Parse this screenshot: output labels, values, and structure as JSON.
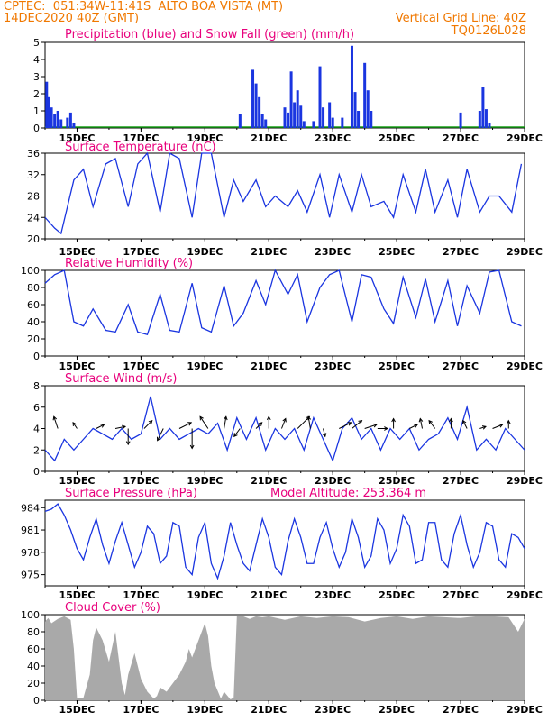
{
  "header": {
    "line1": "CPTEC:  051:34W-11:41S  ALTO BOA VISTA (MT)",
    "line2": "14DEC2020 40Z (GMT)",
    "grid_note": "Vertical Grid Line: 40Z",
    "code": "TQ0126L028"
  },
  "colors": {
    "title": "#e8007c",
    "header": "#f07800",
    "line": "#1a35e0",
    "precip": "#1a35e0",
    "snow": "#18a018",
    "cloud": "#a9a9a9",
    "wind_arrow": "#000000"
  },
  "x_ticks": [
    "15DEC",
    "17DEC",
    "19DEC",
    "21DEC",
    "23DEC",
    "25DEC",
    "27DEC",
    "29DEC"
  ],
  "chart_data": [
    {
      "id": "precip",
      "type": "bar",
      "title": "Precipitation (blue) and Snow Fall (green) (mm/h)",
      "ylim": [
        0,
        5
      ],
      "yticks": [
        0,
        1,
        2,
        3,
        4,
        5
      ],
      "xlim": [
        14.0,
        29.0
      ],
      "series": [
        {
          "name": "Precipitation",
          "x": [
            14.05,
            14.1,
            14.2,
            14.3,
            14.4,
            14.5,
            14.7,
            14.8,
            14.9,
            20.1,
            20.5,
            20.6,
            20.7,
            20.8,
            20.9,
            21.5,
            21.6,
            21.7,
            21.8,
            21.9,
            22.0,
            22.1,
            22.4,
            22.6,
            22.7,
            22.9,
            23.0,
            23.3,
            23.6,
            23.7,
            23.8,
            24.0,
            24.1,
            24.2,
            27.0,
            27.6,
            27.7,
            27.8,
            27.9
          ],
          "values": [
            2.7,
            1.8,
            1.2,
            0.8,
            1.0,
            0.5,
            0.6,
            0.9,
            0.3,
            0.8,
            3.4,
            2.6,
            1.8,
            0.8,
            0.5,
            1.2,
            0.9,
            3.3,
            1.5,
            2.2,
            1.3,
            0.4,
            0.4,
            3.6,
            1.2,
            1.5,
            0.6,
            0.6,
            4.8,
            2.1,
            1.0,
            3.8,
            2.2,
            1.0,
            0.9,
            1.0,
            2.4,
            1.1,
            0.3
          ]
        },
        {
          "name": "Snow Fall",
          "x": [],
          "values": []
        }
      ]
    },
    {
      "id": "temp",
      "type": "line",
      "title": "Surface Temperature (nC)",
      "ylim": [
        20,
        36
      ],
      "yticks": [
        20,
        24,
        28,
        32,
        36
      ],
      "xlim": [
        14.0,
        29.0
      ],
      "x": [
        14.0,
        14.3,
        14.5,
        14.9,
        15.2,
        15.5,
        15.9,
        16.2,
        16.6,
        16.9,
        17.2,
        17.6,
        17.9,
        18.2,
        18.6,
        18.9,
        19.2,
        19.6,
        19.9,
        20.2,
        20.6,
        20.9,
        21.2,
        21.6,
        21.9,
        22.2,
        22.6,
        22.9,
        23.2,
        23.6,
        23.9,
        24.2,
        24.6,
        24.9,
        25.2,
        25.6,
        25.9,
        26.2,
        26.6,
        26.9,
        27.2,
        27.6,
        27.9,
        28.2,
        28.6,
        28.9
      ],
      "y": [
        24,
        22,
        21,
        31,
        33,
        26,
        34,
        35,
        26,
        34,
        36,
        25,
        36,
        35,
        24,
        36,
        36,
        24,
        31,
        27,
        31,
        26,
        28,
        26,
        29,
        25,
        32,
        24,
        32,
        25,
        32,
        26,
        27,
        24,
        32,
        25,
        33,
        25,
        31,
        24,
        33,
        25,
        28,
        28,
        25,
        34
      ]
    },
    {
      "id": "rh",
      "type": "line",
      "title": "Relative Humidity (%)",
      "ylim": [
        0,
        100
      ],
      "yticks": [
        0,
        20,
        40,
        60,
        80,
        100
      ],
      "xlim": [
        14.0,
        29.0
      ],
      "x": [
        14.0,
        14.3,
        14.6,
        14.9,
        15.2,
        15.5,
        15.9,
        16.2,
        16.6,
        16.9,
        17.2,
        17.6,
        17.9,
        18.2,
        18.6,
        18.9,
        19.2,
        19.6,
        19.9,
        20.2,
        20.6,
        20.9,
        21.2,
        21.6,
        21.9,
        22.2,
        22.6,
        22.9,
        23.2,
        23.6,
        23.9,
        24.2,
        24.6,
        24.9,
        25.2,
        25.6,
        25.9,
        26.2,
        26.6,
        26.9,
        27.2,
        27.6,
        27.9,
        28.2,
        28.6,
        28.9
      ],
      "y": [
        85,
        95,
        100,
        40,
        35,
        55,
        30,
        28,
        60,
        28,
        25,
        72,
        30,
        28,
        85,
        33,
        28,
        82,
        35,
        50,
        88,
        60,
        100,
        72,
        95,
        40,
        80,
        95,
        100,
        40,
        95,
        92,
        55,
        38,
        92,
        45,
        90,
        40,
        88,
        35,
        82,
        50,
        98,
        100,
        40,
        35
      ]
    },
    {
      "id": "wind",
      "type": "line",
      "title": "Surface Wind (m/s)",
      "ylim": [
        0,
        8
      ],
      "yticks": [
        0,
        2,
        4,
        6,
        8
      ],
      "xlim": [
        14.0,
        29.0
      ],
      "x": [
        14.0,
        14.3,
        14.6,
        14.9,
        15.2,
        15.5,
        15.8,
        16.1,
        16.4,
        16.7,
        17.0,
        17.3,
        17.6,
        17.9,
        18.2,
        18.5,
        18.8,
        19.1,
        19.4,
        19.7,
        20.0,
        20.3,
        20.6,
        20.9,
        21.2,
        21.5,
        21.8,
        22.1,
        22.4,
        22.7,
        23.0,
        23.3,
        23.6,
        23.9,
        24.2,
        24.5,
        24.8,
        25.1,
        25.4,
        25.7,
        26.0,
        26.3,
        26.6,
        26.9,
        27.2,
        27.5,
        27.8,
        28.1,
        28.4,
        28.7,
        29.0
      ],
      "y": [
        2,
        1,
        3,
        2,
        3,
        4,
        3.5,
        3,
        4,
        3,
        3.5,
        7,
        3,
        4,
        3,
        3.5,
        4,
        3.5,
        4.5,
        2,
        5,
        3,
        5,
        2,
        4,
        3,
        4,
        2,
        5,
        3,
        1,
        4,
        5,
        3,
        4,
        2,
        4,
        3,
        4,
        2,
        3,
        3.5,
        5,
        3,
        6,
        2,
        3,
        2,
        4,
        3,
        2
      ],
      "barbs": [
        {
          "x": 14.4,
          "u": -0.2,
          "v": 0.6
        },
        {
          "x": 15.0,
          "u": -0.2,
          "v": 0.3
        },
        {
          "x": 15.6,
          "u": 0.4,
          "v": 0.2
        },
        {
          "x": 16.2,
          "u": 0.5,
          "v": 0.1
        },
        {
          "x": 16.6,
          "u": 0.0,
          "v": -0.8
        },
        {
          "x": 17.1,
          "u": 0.4,
          "v": 0.4
        },
        {
          "x": 17.7,
          "u": -0.3,
          "v": -0.6
        },
        {
          "x": 18.2,
          "u": 0.6,
          "v": 0.3
        },
        {
          "x": 18.6,
          "u": 0.0,
          "v": -1.0
        },
        {
          "x": 19.1,
          "u": -0.4,
          "v": 0.6
        },
        {
          "x": 19.6,
          "u": 0.1,
          "v": 0.6
        },
        {
          "x": 20.1,
          "u": -0.3,
          "v": -0.4
        },
        {
          "x": 20.6,
          "u": 0.3,
          "v": 0.3
        },
        {
          "x": 21.0,
          "u": 0.0,
          "v": 0.6
        },
        {
          "x": 21.4,
          "u": 0.2,
          "v": 0.5
        },
        {
          "x": 21.9,
          "u": 0.6,
          "v": 0.6
        },
        {
          "x": 22.3,
          "u": -0.1,
          "v": 0.6
        },
        {
          "x": 22.7,
          "u": 0.1,
          "v": -0.4
        },
        {
          "x": 23.2,
          "u": 0.6,
          "v": 0.3
        },
        {
          "x": 23.6,
          "u": 0.5,
          "v": 0.4
        },
        {
          "x": 24.0,
          "u": 0.6,
          "v": 0.2
        },
        {
          "x": 24.4,
          "u": 0.5,
          "v": 0.0
        },
        {
          "x": 24.9,
          "u": 0.0,
          "v": 0.5
        },
        {
          "x": 25.4,
          "u": 0.4,
          "v": 0.2
        },
        {
          "x": 25.8,
          "u": -0.1,
          "v": 0.5
        },
        {
          "x": 26.2,
          "u": -0.3,
          "v": 0.4
        },
        {
          "x": 26.7,
          "u": 0.0,
          "v": 0.5
        },
        {
          "x": 27.2,
          "u": -0.2,
          "v": 0.4
        },
        {
          "x": 27.6,
          "u": 0.3,
          "v": 0.1
        },
        {
          "x": 28.0,
          "u": 0.5,
          "v": 0.2
        },
        {
          "x": 28.5,
          "u": 0.0,
          "v": 0.4
        }
      ]
    },
    {
      "id": "pressure",
      "type": "line",
      "title": "Surface Pressure (hPa)",
      "annotation": "Model Altitude: 253.364 m",
      "ylim": [
        973.5,
        985
      ],
      "yticks": [
        975,
        978,
        981,
        984
      ],
      "xlim": [
        14.0,
        29.0
      ],
      "x": [
        14.0,
        14.2,
        14.4,
        14.6,
        14.8,
        15.0,
        15.2,
        15.4,
        15.6,
        15.8,
        16.0,
        16.2,
        16.4,
        16.6,
        16.8,
        17.0,
        17.2,
        17.4,
        17.6,
        17.8,
        18.0,
        18.2,
        18.4,
        18.6,
        18.8,
        19.0,
        19.2,
        19.4,
        19.6,
        19.8,
        20.0,
        20.2,
        20.4,
        20.6,
        20.8,
        21.0,
        21.2,
        21.4,
        21.6,
        21.8,
        22.0,
        22.2,
        22.4,
        22.6,
        22.8,
        23.0,
        23.2,
        23.4,
        23.6,
        23.8,
        24.0,
        24.2,
        24.4,
        24.6,
        24.8,
        25.0,
        25.2,
        25.4,
        25.6,
        25.8,
        26.0,
        26.2,
        26.4,
        26.6,
        26.8,
        27.0,
        27.2,
        27.4,
        27.6,
        27.8,
        28.0,
        28.2,
        28.4,
        28.6,
        28.8,
        29.0
      ],
      "y": [
        983.5,
        983.8,
        984.5,
        983.0,
        981.0,
        978.5,
        977.0,
        980.0,
        982.5,
        979.0,
        976.5,
        979.5,
        982.0,
        979.0,
        976.0,
        978.0,
        981.5,
        980.5,
        976.5,
        977.5,
        982.0,
        981.5,
        976.0,
        975.0,
        980.0,
        982.0,
        976.5,
        974.5,
        977.5,
        982.0,
        979.0,
        976.5,
        975.5,
        979.0,
        982.5,
        980.0,
        976.0,
        975.0,
        979.5,
        982.5,
        980.0,
        976.5,
        976.5,
        980.0,
        982.0,
        978.5,
        976.0,
        978.0,
        982.5,
        980.0,
        976.0,
        977.5,
        982.5,
        981.0,
        976.5,
        978.5,
        983.0,
        981.5,
        976.5,
        977.0,
        982.0,
        982.0,
        977.0,
        976.0,
        980.5,
        983.0,
        979.0,
        976.0,
        978.0,
        982.0,
        981.5,
        977.0,
        976.0,
        980.5,
        980.0,
        978.5
      ]
    },
    {
      "id": "cloud",
      "type": "area",
      "title": "Cloud Cover (%)",
      "ylim": [
        0,
        100
      ],
      "yticks": [
        0,
        20,
        40,
        60,
        80,
        100
      ],
      "xlim": [
        14.0,
        29.0
      ],
      "x": [
        14.0,
        14.1,
        14.2,
        14.4,
        14.6,
        14.8,
        14.9,
        15.0,
        15.2,
        15.4,
        15.5,
        15.6,
        15.8,
        16.0,
        16.2,
        16.4,
        16.5,
        16.6,
        16.8,
        17.0,
        17.2,
        17.4,
        17.5,
        17.6,
        17.8,
        18.0,
        18.2,
        18.4,
        18.5,
        18.6,
        18.8,
        19.0,
        19.1,
        19.2,
        19.3,
        19.5,
        19.6,
        19.8,
        19.9,
        20.0,
        20.2,
        20.4,
        20.6,
        20.8,
        21.0,
        21.5,
        22.0,
        22.5,
        23.0,
        23.5,
        24.0,
        24.5,
        25.0,
        25.5,
        26.0,
        26.5,
        27.0,
        27.5,
        28.0,
        28.5,
        28.8,
        29.0
      ],
      "y": [
        92,
        96,
        90,
        95,
        98,
        94,
        60,
        2,
        3,
        30,
        70,
        85,
        70,
        45,
        80,
        20,
        6,
        30,
        55,
        25,
        10,
        2,
        5,
        15,
        10,
        20,
        30,
        45,
        60,
        50,
        70,
        90,
        75,
        40,
        20,
        2,
        10,
        1,
        3,
        98,
        98,
        95,
        98,
        97,
        98,
        94,
        98,
        96,
        98,
        97,
        92,
        96,
        98,
        95,
        98,
        97,
        96,
        98,
        98,
        97,
        80,
        95
      ]
    }
  ]
}
